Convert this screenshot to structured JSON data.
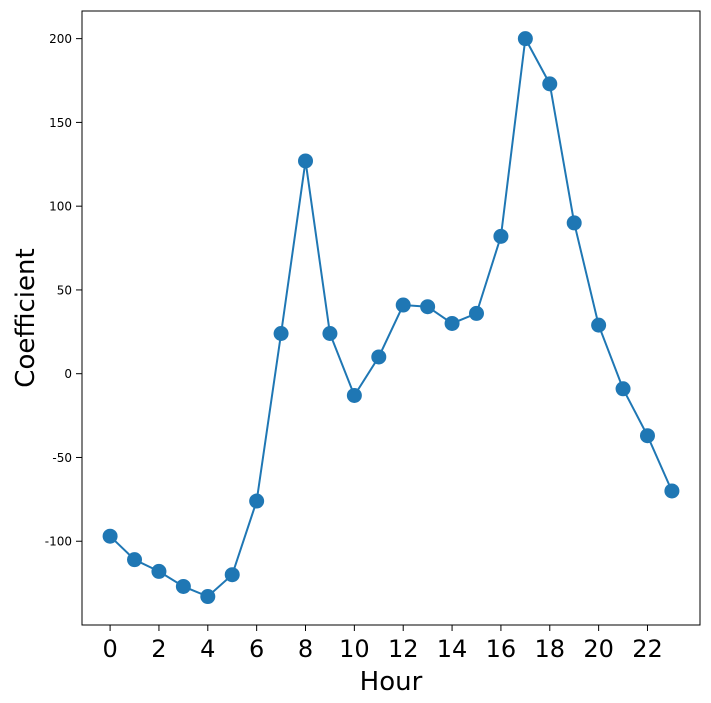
{
  "chart_data": {
    "type": "line",
    "title": "",
    "xlabel": "Hour",
    "ylabel": "Coefficient",
    "x": [
      0,
      1,
      2,
      3,
      4,
      5,
      6,
      7,
      8,
      9,
      10,
      11,
      12,
      13,
      14,
      15,
      16,
      17,
      18,
      19,
      20,
      21,
      22,
      23
    ],
    "series": [
      {
        "values": [
          -97,
          -111,
          -118,
          -127,
          -133,
          -120,
          -76,
          24,
          127,
          24,
          -13,
          10,
          41,
          40,
          30,
          36,
          82,
          200,
          173,
          90,
          29,
          -9,
          -37,
          -70
        ],
        "color": "#1f77b4",
        "marker": "circle"
      }
    ],
    "xticks": [
      0,
      2,
      4,
      6,
      8,
      10,
      12,
      14,
      16,
      18,
      20,
      22
    ],
    "xtick_labels": [
      "0",
      "2",
      "4",
      "6",
      "8",
      "10",
      "12",
      "14",
      "16",
      "18",
      "20",
      "22"
    ],
    "yticks": [
      -100,
      -50,
      0,
      50,
      100,
      150,
      200
    ],
    "ytick_labels": [
      "-100",
      "-50",
      "0",
      "50",
      "100",
      "150",
      "200"
    ],
    "xlim": [
      -1.15,
      24.15
    ],
    "ylim": [
      -150,
      216.5
    ],
    "grid": false,
    "legend": "none"
  }
}
